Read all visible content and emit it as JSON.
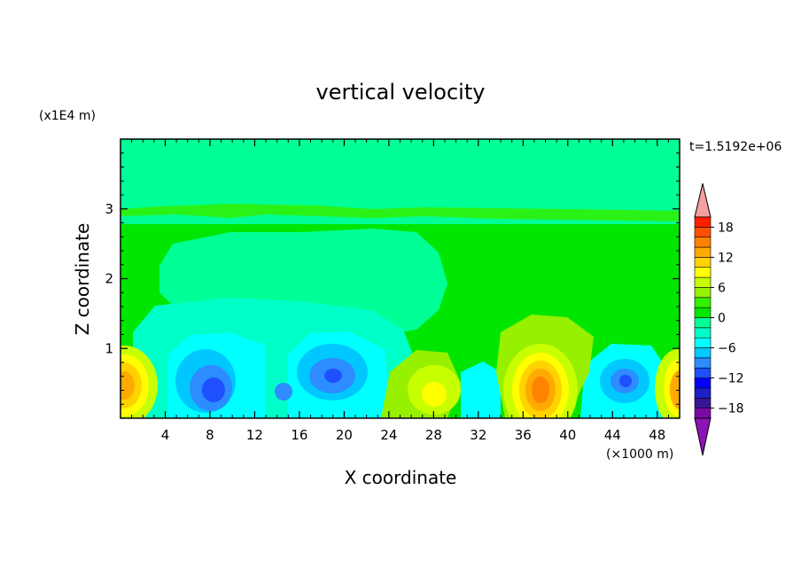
{
  "chart_data": {
    "type": "heatmap",
    "title": "vertical velocity",
    "xlabel": "X coordinate",
    "ylabel": "Z coordinate",
    "x_unit_label": "(×1000 m)",
    "y_unit_label": "(x1E4 m)",
    "time_label": "t=1.5192e+06",
    "xlim": [
      0,
      50
    ],
    "ylim": [
      0,
      4
    ],
    "x_ticks": [
      4,
      8,
      12,
      16,
      20,
      24,
      28,
      32,
      36,
      40,
      44,
      48
    ],
    "y_ticks": [
      1,
      2,
      3
    ],
    "x_tick_labels": [
      "4",
      "8",
      "12",
      "16",
      "20",
      "24",
      "28",
      "32",
      "36",
      "40",
      "44",
      "48"
    ],
    "y_tick_labels": [
      "1",
      "2",
      "3"
    ],
    "colorbar": {
      "levels": [
        -20,
        -18,
        -16,
        -14,
        -12,
        -10,
        -8,
        -6,
        -4,
        -2,
        0,
        2,
        4,
        6,
        8,
        10,
        12,
        14,
        16,
        18,
        20
      ],
      "label_values": [
        "18",
        "12",
        "6",
        "0",
        "−6",
        "−12",
        "−18"
      ],
      "colors": [
        "#7a0aa6",
        "#3a1496",
        "#1e1ec8",
        "#0000ff",
        "#1e50ff",
        "#2d8cff",
        "#00c8ff",
        "#00ffff",
        "#00ffc8",
        "#00ff96",
        "#00e600",
        "#32f000",
        "#96f000",
        "#c8ff00",
        "#ffff00",
        "#ffd200",
        "#ffaa00",
        "#ff8200",
        "#ff5000",
        "#ff1e00",
        "#f5a0a0"
      ],
      "under_color": "#8c14b4",
      "over_color": "#f5a0a0"
    },
    "features": [
      {
        "x": 0.5,
        "z": 0.45,
        "value": 14
      },
      {
        "x": 8.5,
        "z": 0.4,
        "value": -12
      },
      {
        "x": 13.5,
        "z": 0.4,
        "value": -8
      },
      {
        "x": 18.8,
        "z": 0.6,
        "value": -12
      },
      {
        "x": 28.5,
        "z": 0.4,
        "value": 6
      },
      {
        "x": 37.6,
        "z": 0.45,
        "value": 16
      },
      {
        "x": 45.0,
        "z": 0.5,
        "value": -12
      },
      {
        "x": 49.5,
        "z": 0.45,
        "value": 12
      }
    ]
  }
}
